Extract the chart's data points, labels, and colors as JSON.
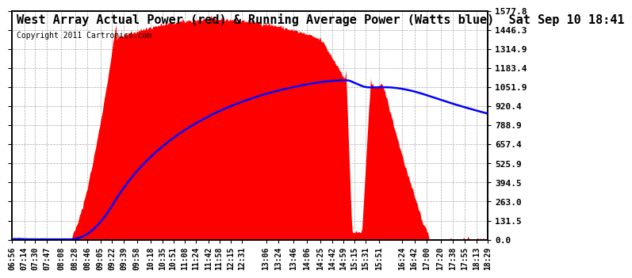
{
  "title": "West Array Actual Power (red) & Running Average Power (Watts blue)  Sat Sep 10 18:41",
  "copyright": "Copyright 2011 Cartronics.com",
  "bg_color": "#ffffff",
  "plot_bg_color": "#ffffff",
  "grid_color": "#aaaaaa",
  "red_color": "#ff0000",
  "blue_color": "#0000ff",
  "ymin": 0.0,
  "ymax": 1577.8,
  "yticks": [
    0.0,
    131.5,
    263.0,
    394.5,
    525.9,
    657.4,
    788.9,
    920.4,
    1051.9,
    1183.4,
    1314.9,
    1446.3,
    1577.8
  ],
  "x_labels": [
    "06:56",
    "07:14",
    "07:30",
    "07:47",
    "08:08",
    "08:28",
    "08:46",
    "09:05",
    "09:22",
    "09:39",
    "09:58",
    "10:18",
    "10:35",
    "10:51",
    "11:08",
    "11:24",
    "11:42",
    "11:58",
    "12:15",
    "12:31",
    "13:06",
    "13:24",
    "13:46",
    "14:06",
    "14:25",
    "14:42",
    "14:59",
    "15:15",
    "15:31",
    "15:51",
    "16:24",
    "16:42",
    "17:00",
    "17:20",
    "17:38",
    "17:55",
    "18:13",
    "18:29"
  ],
  "title_fontsize": 11,
  "copyright_fontsize": 7,
  "ylabel_fontsize": 8,
  "xlabel_fontsize": 7
}
